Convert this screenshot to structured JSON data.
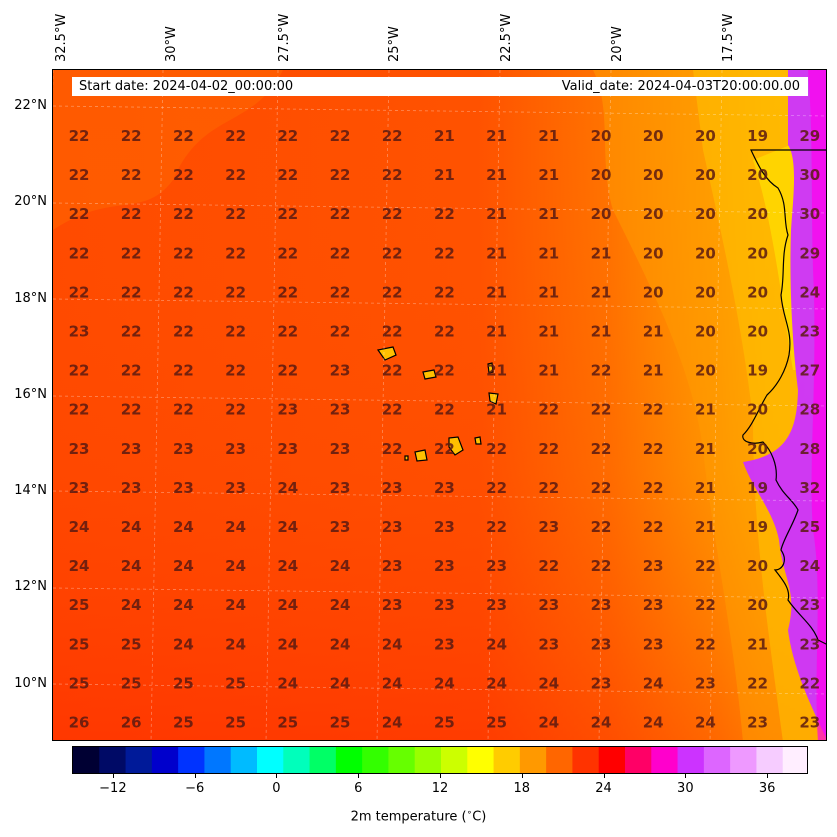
{
  "header": {
    "start_date": "Start date: 2024-04-02_00:00:00",
    "valid_date": "Valid_date: 2024-04-03T20:00:00.00"
  },
  "axes": {
    "lat_labels": [
      "22°N",
      "20°N",
      "18°N",
      "16°N",
      "14°N",
      "12°N",
      "10°N"
    ],
    "lon_labels": [
      "32.5°W",
      "30°W",
      "27.5°W",
      "25°W",
      "22.5°W",
      "20°W",
      "17.5°W"
    ]
  },
  "colorbar": {
    "label": "2m temperature ( °C)",
    "label_text": "2m temperature ($^\\circ$C)",
    "ticks": [
      "−12",
      "−6",
      "0",
      "6",
      "12",
      "18",
      "24",
      "30",
      "36"
    ],
    "min": -15,
    "max": 39,
    "colors": [
      "#000033",
      "#000a66",
      "#001a99",
      "#0000cc",
      "#0033ff",
      "#0077ff",
      "#00bbff",
      "#00ffff",
      "#00ffbb",
      "#00ff66",
      "#00ff00",
      "#33ff00",
      "#66ff00",
      "#99ff00",
      "#ccff00",
      "#ffff00",
      "#ffcc00",
      "#ff9900",
      "#ff6600",
      "#ff3300",
      "#ff0000",
      "#ff0066",
      "#ff00cc",
      "#cc33ff",
      "#dd66ff",
      "#ee99ff",
      "#f6ccff",
      "#ffeeff"
    ]
  },
  "chart_data": {
    "type": "heatmap",
    "variable": "2m temperature",
    "units": "°C",
    "rows": [
      [
        "22",
        "22",
        "22",
        "22",
        "22",
        "22",
        "22",
        "21",
        "21",
        "21",
        "20",
        "20",
        "20",
        "19",
        "29"
      ],
      [
        "22",
        "22",
        "22",
        "22",
        "22",
        "22",
        "22",
        "21",
        "21",
        "21",
        "20",
        "20",
        "20",
        "20",
        "30"
      ],
      [
        "22",
        "22",
        "22",
        "22",
        "22",
        "22",
        "22",
        "22",
        "21",
        "21",
        "20",
        "20",
        "20",
        "20",
        "30"
      ],
      [
        "22",
        "22",
        "22",
        "22",
        "22",
        "22",
        "22",
        "22",
        "21",
        "21",
        "21",
        "20",
        "20",
        "20",
        "29"
      ],
      [
        "22",
        "22",
        "22",
        "22",
        "22",
        "22",
        "22",
        "22",
        "21",
        "21",
        "21",
        "20",
        "20",
        "20",
        "24"
      ],
      [
        "23",
        "22",
        "22",
        "22",
        "22",
        "22",
        "22",
        "22",
        "21",
        "21",
        "21",
        "21",
        "20",
        "20",
        "23"
      ],
      [
        "22",
        "22",
        "22",
        "22",
        "22",
        "23",
        "22",
        "22",
        "21",
        "21",
        "22",
        "21",
        "20",
        "19",
        "27"
      ],
      [
        "22",
        "22",
        "22",
        "22",
        "23",
        "23",
        "22",
        "22",
        "21",
        "22",
        "22",
        "22",
        "21",
        "20",
        "28"
      ],
      [
        "23",
        "23",
        "23",
        "23",
        "23",
        "23",
        "22",
        "22",
        "22",
        "22",
        "22",
        "22",
        "21",
        "20",
        "28"
      ],
      [
        "23",
        "23",
        "23",
        "23",
        "24",
        "23",
        "23",
        "23",
        "22",
        "22",
        "22",
        "22",
        "21",
        "19",
        "32"
      ],
      [
        "24",
        "24",
        "24",
        "24",
        "24",
        "23",
        "23",
        "23",
        "22",
        "23",
        "22",
        "22",
        "21",
        "19",
        "25"
      ],
      [
        "24",
        "24",
        "24",
        "24",
        "24",
        "24",
        "23",
        "23",
        "23",
        "22",
        "22",
        "23",
        "22",
        "20",
        "24"
      ],
      [
        "25",
        "24",
        "24",
        "24",
        "24",
        "24",
        "23",
        "23",
        "23",
        "23",
        "23",
        "23",
        "22",
        "20",
        "23"
      ],
      [
        "25",
        "25",
        "24",
        "24",
        "24",
        "24",
        "24",
        "23",
        "24",
        "23",
        "23",
        "23",
        "22",
        "21",
        "23"
      ],
      [
        "25",
        "25",
        "25",
        "25",
        "24",
        "24",
        "24",
        "24",
        "24",
        "24",
        "23",
        "24",
        "23",
        "22",
        "22"
      ],
      [
        "26",
        "26",
        "25",
        "25",
        "25",
        "25",
        "24",
        "25",
        "25",
        "24",
        "24",
        "24",
        "24",
        "23",
        "23"
      ]
    ]
  }
}
